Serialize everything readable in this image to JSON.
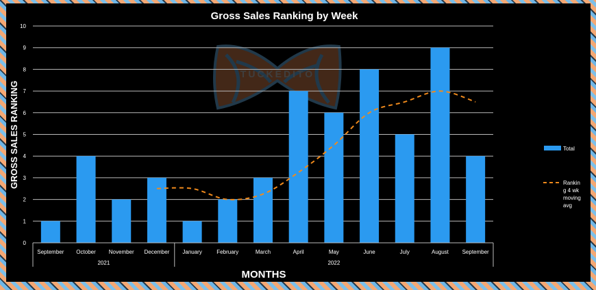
{
  "chart_data": {
    "type": "bar",
    "title": "Gross Sales Ranking by Week",
    "xlabel": "MONTHS",
    "ylabel": "GROSS SALES RANKING",
    "ylim": [
      0,
      10
    ],
    "yticks": [
      0,
      1,
      2,
      3,
      4,
      5,
      6,
      7,
      8,
      9,
      10
    ],
    "grid": true,
    "legend_position": "right",
    "categories": [
      "September",
      "October",
      "November",
      "December",
      "January",
      "February",
      "March",
      "April",
      "May",
      "June",
      "July",
      "August",
      "September"
    ],
    "groups": [
      {
        "label": "2021",
        "count": 4
      },
      {
        "label": "2022",
        "count": 9
      }
    ],
    "series": [
      {
        "name": "Total",
        "type": "bar",
        "color": "#2b9af0",
        "values": [
          1,
          4,
          2,
          3,
          1,
          2,
          3,
          7,
          6,
          8,
          5,
          9,
          4
        ]
      },
      {
        "name": "Rankin g 4 wk moving avg",
        "type": "line",
        "style": "dashed",
        "color": "#f08a1c",
        "values": [
          null,
          null,
          null,
          2.5,
          2.5,
          2,
          2.25,
          3.25,
          4.5,
          6,
          6.5,
          7,
          6.5
        ]
      }
    ]
  },
  "watermark": "TUCKEDITO"
}
